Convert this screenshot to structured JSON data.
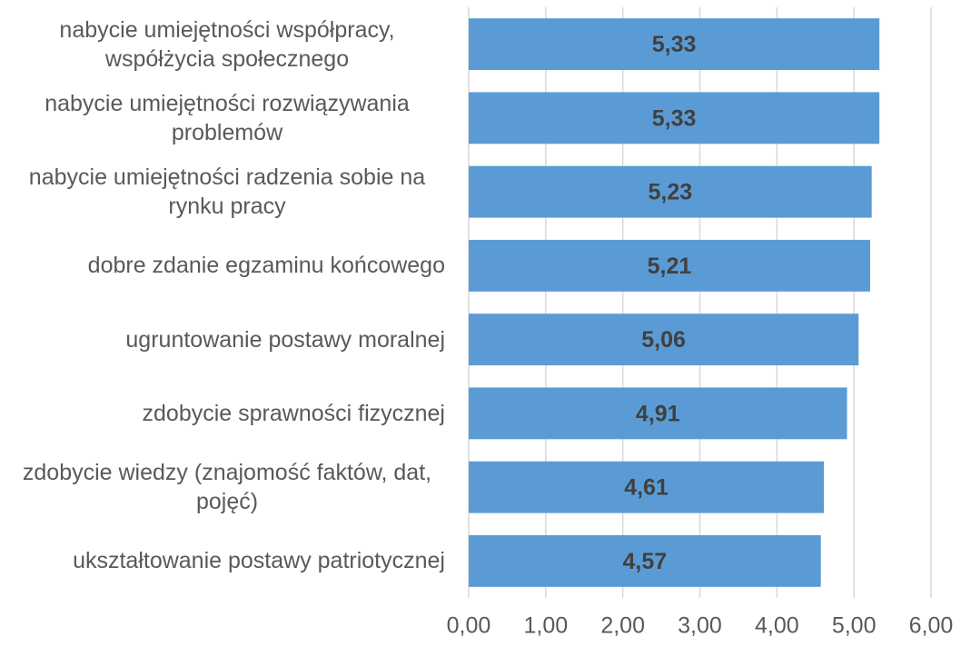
{
  "chart_data": {
    "type": "bar",
    "orientation": "horizontal",
    "categories": [
      "nabycie umiejętności współpracy, współżycia społecznego",
      "nabycie umiejętności rozwiązywania problemów",
      "nabycie umiejętności radzenia sobie na rynku pracy",
      "dobre zdanie egzaminu końcowego",
      "ugruntowanie postawy moralnej",
      "zdobycie sprawności fizycznej",
      "zdobycie wiedzy (znajomość faktów, dat, pojęć)",
      "ukształtowanie postawy patriotycznej"
    ],
    "values": [
      5.33,
      5.33,
      5.23,
      5.21,
      5.06,
      4.91,
      4.61,
      4.57
    ],
    "value_labels": [
      "5,33",
      "5,33",
      "5,23",
      "5,21",
      "5,06",
      "4,91",
      "4,61",
      "4,57"
    ],
    "color": "#5b9bd5",
    "xlim": [
      0,
      6
    ],
    "xticks": [
      {
        "value": 0,
        "label": "0,00"
      },
      {
        "value": 1,
        "label": "1,00"
      },
      {
        "value": 2,
        "label": "2,00"
      },
      {
        "value": 3,
        "label": "3,00"
      },
      {
        "value": 4,
        "label": "4,00"
      },
      {
        "value": 5,
        "label": "5,00"
      },
      {
        "value": 6,
        "label": "6,00"
      }
    ],
    "grid": true
  }
}
